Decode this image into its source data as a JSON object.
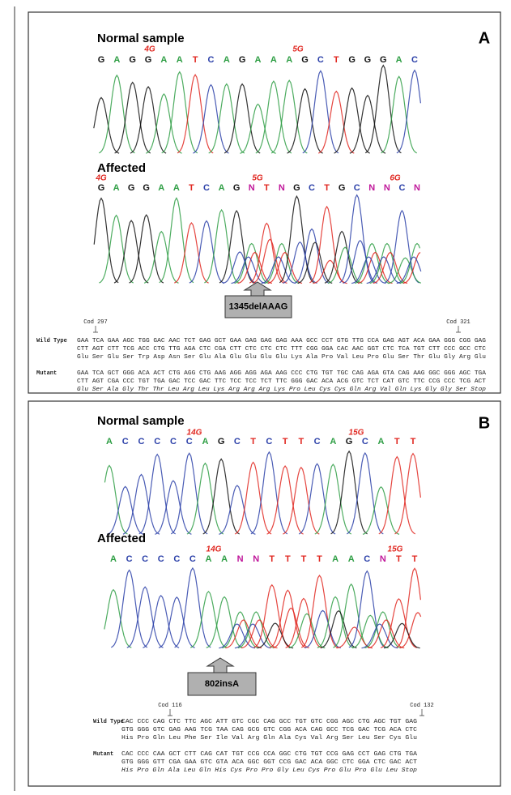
{
  "base_colors": {
    "A": "#2e9e44",
    "C": "#2a3fa8",
    "G": "#111111",
    "T": "#e0261f",
    "N": "#c0169a"
  },
  "panels": [
    {
      "label": "A",
      "tracks": [
        {
          "title": "Normal sample",
          "annotations": [
            "4G",
            "5G"
          ],
          "bases": [
            "G",
            "A",
            "G",
            "G",
            "A",
            "A",
            "T",
            "C",
            "A",
            "G",
            "A",
            "A",
            "A",
            "G",
            "C",
            "T",
            "G",
            "G",
            "G",
            "A",
            "C"
          ]
        },
        {
          "title": "Affected",
          "annotations": [
            "4G",
            "5G",
            "6G"
          ],
          "bases": [
            "G",
            "A",
            "G",
            "G",
            "A",
            "A",
            "T",
            "C",
            "A",
            "G",
            "N",
            "T",
            "N",
            "G",
            "C",
            "T",
            "G",
            "C",
            "N",
            "N",
            "C",
            "N"
          ]
        }
      ],
      "callout": "1345delAAAG",
      "alignment": {
        "start_codon": "Cod 297",
        "end_codon": "Cod 321",
        "rows": [
          {
            "name": "Wild Type",
            "lines": [
              "GAA TCA GAA AGC TGG GAC AAC TCT GAG GCT GAA GAG GAG GAG AAA GCC CCT GTG TTG CCA GAG AGT ACA GAA GGG CGG GAG",
              "CTT AGT CTT TCG ACC CTG TTG AGA CTC CGA CTT CTC CTC CTC TTT CGG GGA CAC AAC GGT CTC TCA TGT CTT CCC GCC CTC",
              "Glu Ser Glu Ser Trp Asp Asn Ser Glu Ala Glu Glu Glu Glu Lys Ala Pro Val Leu Pro Glu Ser Thr Glu Gly Arg Glu"
            ]
          },
          {
            "name": "Mutant",
            "lines": [
              "GAA TCA GCT GGG ACA ACT CTG AGG CTG AAG AGG AGG AGA AAG CCC CTG TGT TGC CAG AGA GTA CAG AAG GGC GGG AGC TGA",
              "CTT AGT CGA CCC TGT TGA GAC TCC GAC TTC TCC TCC TCT TTC GGG GAC ACA ACG GTC TCT CAT GTC TTC CCG CCC TCG ACT",
              "Glu Ser Ala Gly Thr Thr Leu Arg Leu Lys Arg Arg Arg Lys Pro Leu Cys Cys Gln Arg Val Gln Lys Gly Gly Ser Stop"
            ]
          }
        ]
      }
    },
    {
      "label": "B",
      "tracks": [
        {
          "title": "Normal sample",
          "annotations": [
            "14G",
            "15G"
          ],
          "bases": [
            "A",
            "C",
            "C",
            "C",
            "C",
            "C",
            "A",
            "G",
            "C",
            "T",
            "C",
            "T",
            "T",
            "C",
            "A",
            "G",
            "C",
            "A",
            "T",
            "T"
          ]
        },
        {
          "title": "Affected",
          "annotations": [
            "14G",
            "15G"
          ],
          "bases": [
            "A",
            "C",
            "C",
            "C",
            "C",
            "C",
            "A",
            "A",
            "N",
            "N",
            "T",
            "T",
            "T",
            "T",
            "A",
            "A",
            "C",
            "N",
            "T",
            "T"
          ]
        }
      ],
      "callout": "802insA",
      "alignment": {
        "start_codon": "Cod 116",
        "end_codon": "Cod 132",
        "rows": [
          {
            "name": "Wild Type",
            "lines": [
              "CAC CCC CAG CTC TTC AGC ATT GTC CGC CAG GCC TGT GTC CGG AGC CTG AGC TGT GAG",
              "GTG GGG GTC GAG AAG TCG TAA CAG GCG GTC CGG ACA CAG GCC TCG GAC TCG ACA CTC",
              "His Pro Gln Leu Phe Ser Ile Val Arg Gln Ala Cys Val Arg Ser Leu Ser Cys Glu"
            ]
          },
          {
            "name": "Mutant",
            "lines": [
              "CAC CCC CAA GCT CTT CAG CAT TGT CCG CCA GGC CTG TGT CCG GAG CCT GAG CTG TGA",
              "GTG GGG GTT CGA GAA GTC GTA ACA GGC GGT CCG GAC ACA GGC CTC GGA CTC GAC ACT",
              "His Pro Gln Ala Leu Gln His Cys Pro Pro Gly Leu Cys Pro Glu Pro Glu Leu Stop"
            ]
          }
        ]
      }
    }
  ]
}
